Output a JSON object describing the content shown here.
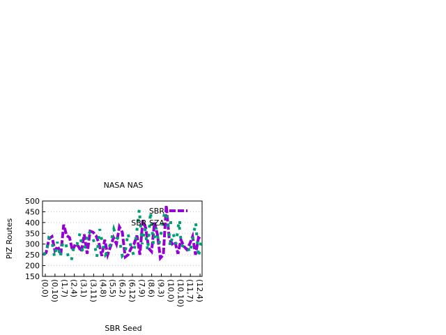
{
  "chart_data": {
    "type": "line",
    "title": "NASA NAS",
    "xlabel": "SBR Seed",
    "ylabel": "PIZ Routes",
    "ylim": [
      150,
      500
    ],
    "yticks": [
      150,
      200,
      250,
      300,
      350,
      400,
      450,
      500
    ],
    "grid": true,
    "legend_position": "top-right",
    "xtick_labels": [
      "(0,0)",
      "(0,10)",
      "(1,7)",
      "(2,4)",
      "(3,1)",
      "(3,11)",
      "(4,8)",
      "(5,5)",
      "(6,2)",
      "(6,12)",
      "(7,9)",
      "(8,6)",
      "(9,3)",
      "(10,0)",
      "(10,10)",
      "(11,7)",
      "(12,4)"
    ],
    "series": [
      {
        "name": "SBR",
        "style": "thick-dashed",
        "color": "#9400d3",
        "values": [
          250,
          260,
          325,
          335,
          270,
          290,
          250,
          390,
          340,
          330,
          270,
          300,
          290,
          265,
          345,
          255,
          360,
          355,
          340,
          305,
          245,
          320,
          250,
          290,
          330,
          300,
          380,
          355,
          240,
          250,
          280,
          300,
          340,
          250,
          410,
          375,
          280,
          265,
          400,
          345,
          235,
          250,
          480,
          325,
          300,
          310,
          255,
          320,
          290,
          275,
          300,
          335,
          250,
          330,
          320
        ]
      },
      {
        "name": "SBR SZA",
        "style": "dotted",
        "color": "#009e73",
        "values": [
          255,
          255,
          330,
          320,
          240,
          310,
          240,
          310,
          305,
          230,
          225,
          300,
          300,
          350,
          260,
          295,
          360,
          345,
          310,
          240,
          370,
          300,
          250,
          270,
          310,
          370,
          330,
          320,
          245,
          260,
          350,
          290,
          250,
          345,
          460,
          300,
          375,
          270,
          450,
          300,
          375,
          300,
          370,
          450,
          420,
          290,
          350,
          300,
          400,
          295,
          285,
          290,
          260,
          330,
          400,
          240,
          320
        ]
      }
    ]
  }
}
